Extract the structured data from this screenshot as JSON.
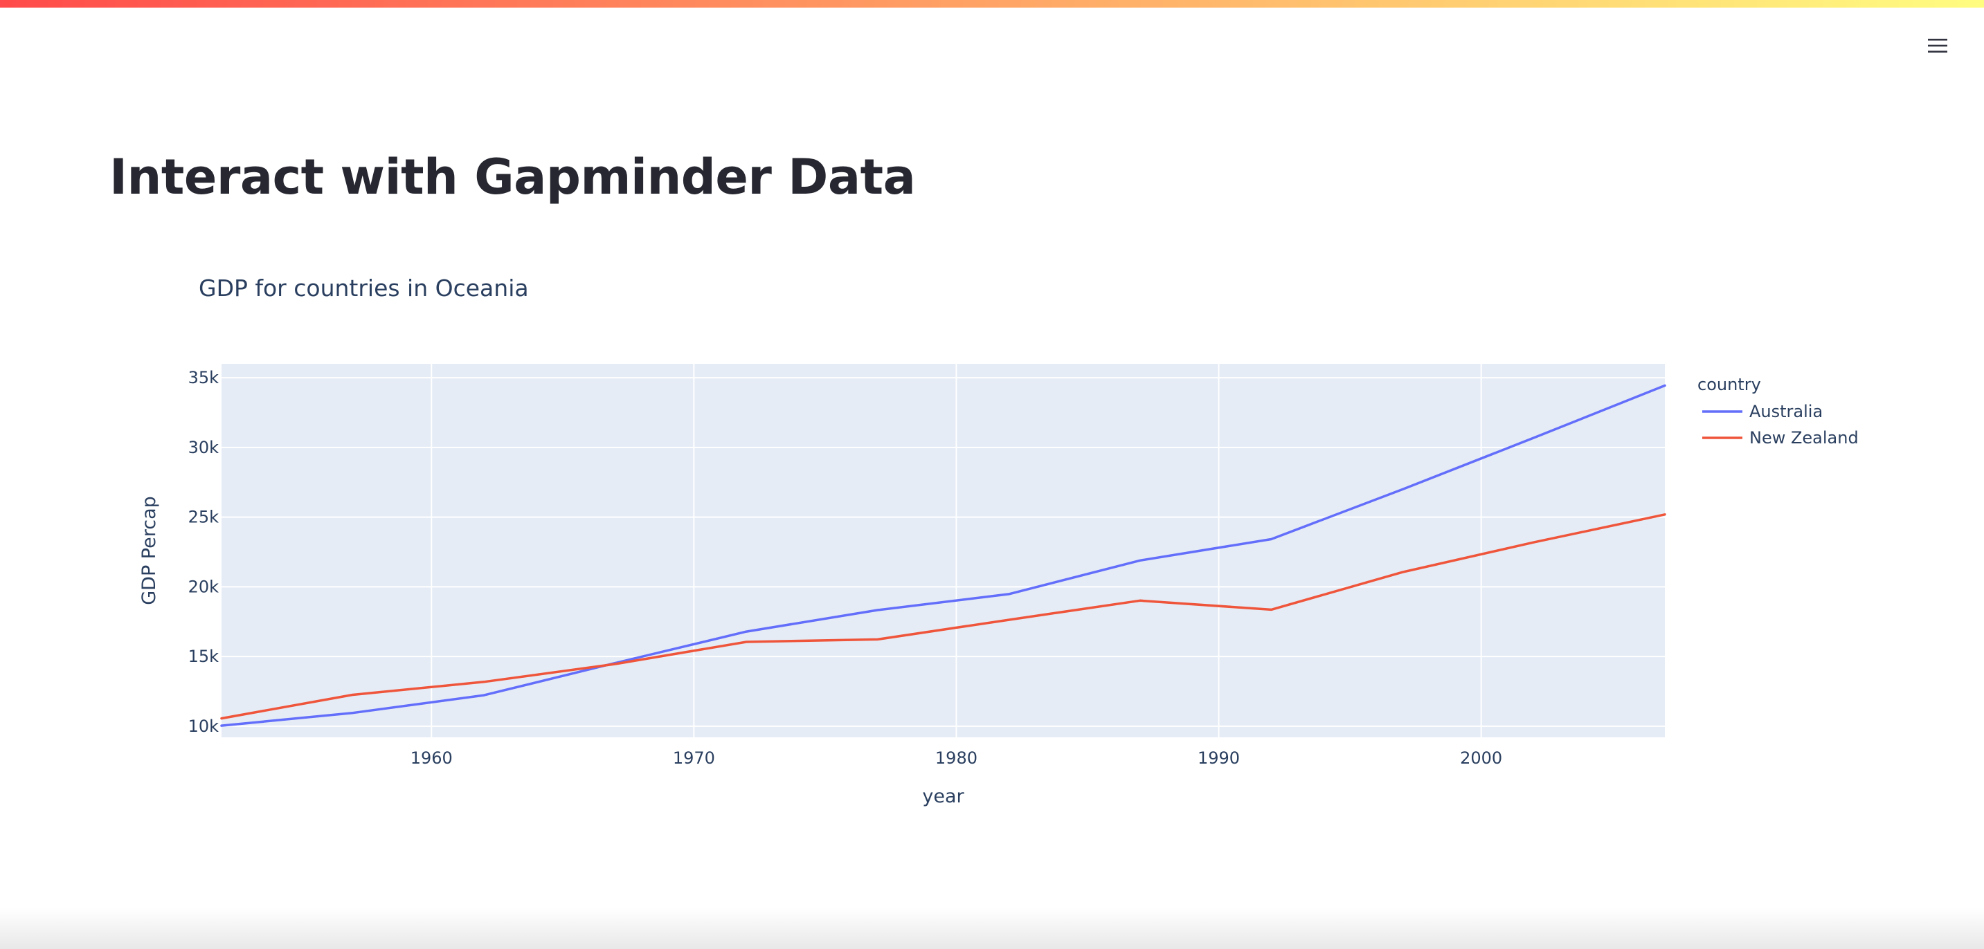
{
  "app": {
    "title": "Interact with Gapminder Data",
    "decoration_colors": [
      "#ff4b4b",
      "#fffd80"
    ],
    "menu_icon": "hamburger-menu-icon"
  },
  "chart_data": {
    "type": "line",
    "title": "GDP for countries in Oceania",
    "xlabel": "year",
    "ylabel": "GDP Percap",
    "xlim": [
      1952,
      2007
    ],
    "ylim": [
      9200,
      36000
    ],
    "x_ticks": [
      1960,
      1970,
      1980,
      1990,
      2000
    ],
    "y_ticks": [
      10000,
      15000,
      20000,
      25000,
      30000,
      35000
    ],
    "y_tick_labels": [
      "10k",
      "15k",
      "20k",
      "25k",
      "30k",
      "35k"
    ],
    "grid": true,
    "legend_title": "country",
    "legend_position": "right",
    "plot_background": "#e5ecf6",
    "x": [
      1952,
      1957,
      1962,
      1967,
      1972,
      1977,
      1982,
      1987,
      1992,
      1997,
      2002,
      2007
    ],
    "series": [
      {
        "name": "Australia",
        "color": "#636efa",
        "values": [
          10040,
          10950,
          12220,
          14530,
          16790,
          18330,
          19480,
          21890,
          23420,
          26990,
          30690,
          34440
        ]
      },
      {
        "name": "New Zealand",
        "color": "#ef553b",
        "values": [
          10560,
          12250,
          13180,
          14460,
          16050,
          16230,
          17630,
          19010,
          18360,
          21050,
          23190,
          25190
        ]
      }
    ]
  }
}
